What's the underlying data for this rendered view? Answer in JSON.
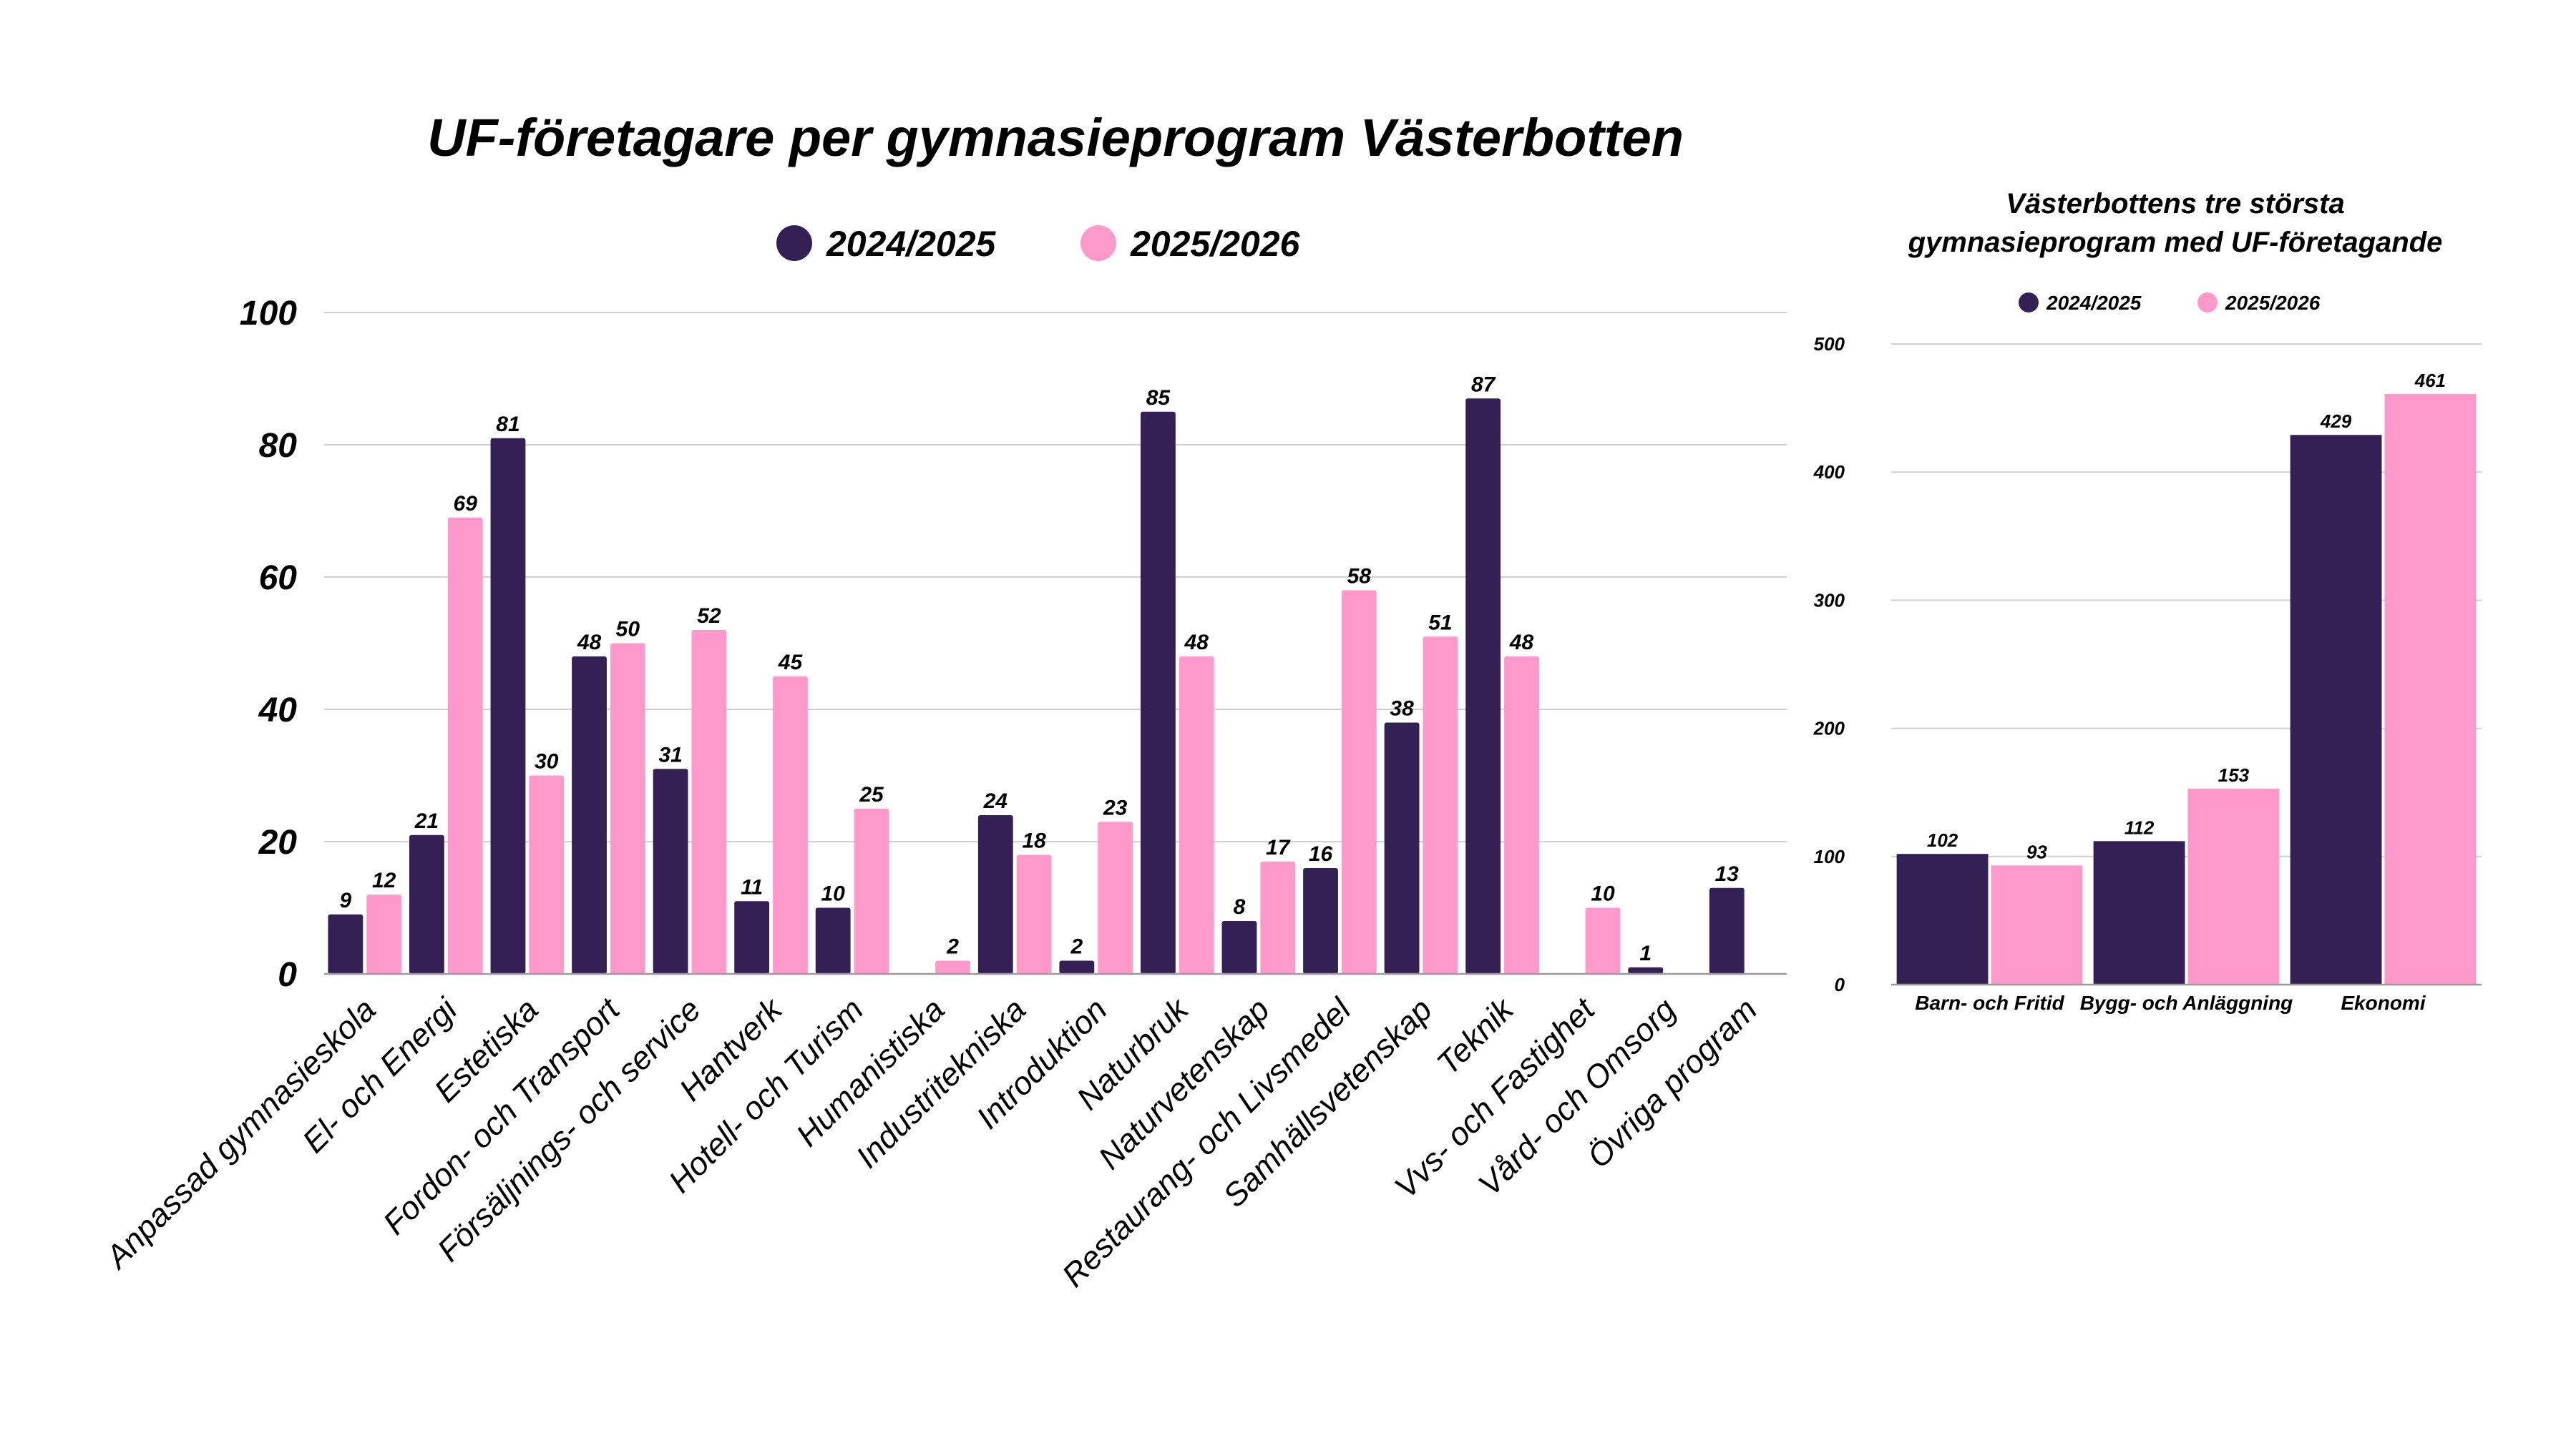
{
  "colors": {
    "series1": "#352055",
    "series2": "#FF99CC"
  },
  "chart_data": [
    {
      "type": "bar",
      "title": "UF-företagare per gymnasieprogram Västerbotten",
      "xlabel": "",
      "ylabel": "",
      "ylim": [
        0,
        100
      ],
      "yticks": [
        0,
        20,
        40,
        60,
        80,
        100
      ],
      "grid": true,
      "legend": "top-center",
      "categories": [
        "Anpassad gymnasieskola",
        "El- och Energi",
        "Estetiska",
        "Fordon- och Transport",
        "Försäljnings- och service",
        "Hantverk",
        "Hotell- och Turism",
        "Humanistiska",
        "Industritekniska",
        "Introduktion",
        "Naturbruk",
        "Naturvetenskap",
        "Restaurang- och Livsmedel",
        "Samhällsvetenskap",
        "Teknik",
        "Vvs- och Fastighet",
        "Vård- och Omsorg",
        "Övriga program"
      ],
      "series": [
        {
          "name": "2024/2025",
          "values": [
            9,
            21,
            81,
            48,
            31,
            11,
            10,
            null,
            24,
            2,
            85,
            8,
            16,
            38,
            87,
            null,
            1,
            13
          ]
        },
        {
          "name": "2025/2026",
          "values": [
            12,
            69,
            30,
            50,
            52,
            45,
            25,
            2,
            18,
            23,
            48,
            17,
            58,
            51,
            48,
            10,
            null,
            null
          ]
        }
      ]
    },
    {
      "type": "bar",
      "title": "Västerbottens tre största gymnasieprogram med UF-företagande",
      "title_lines": [
        "Västerbottens tre största",
        "gymnasieprogram med UF-företagande"
      ],
      "xlabel": "",
      "ylabel": "",
      "ylim": [
        0,
        500
      ],
      "yticks": [
        0,
        100,
        200,
        300,
        400,
        500
      ],
      "grid": true,
      "legend": "top-center",
      "categories": [
        "Barn- och Fritid",
        "Bygg- och Anläggning",
        "Ekonomi"
      ],
      "series": [
        {
          "name": "2024/2025",
          "values": [
            102,
            112,
            429
          ]
        },
        {
          "name": "2025/2026",
          "values": [
            93,
            153,
            461
          ]
        }
      ]
    }
  ]
}
